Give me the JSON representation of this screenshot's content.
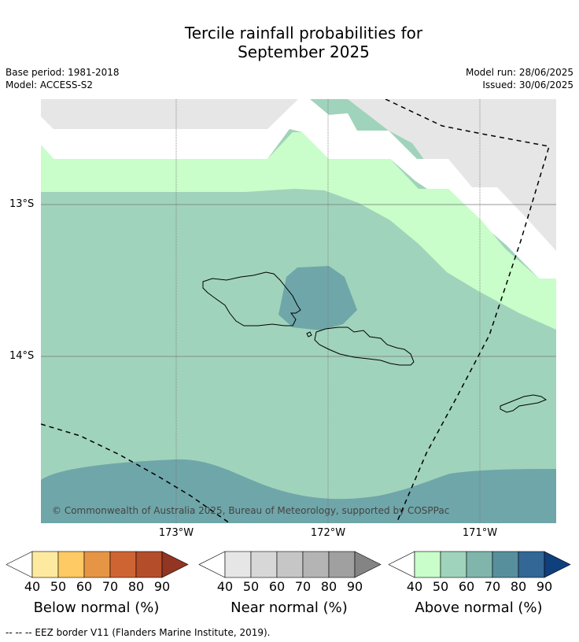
{
  "title_line1": "Tercile rainfall probabilities for",
  "title_line2": "September 2025",
  "meta": {
    "base_period": "Base period: 1981-2018",
    "model": "Model: ACCESS-S2",
    "model_run": "Model run: 28/06/2025",
    "issued": "Issued: 30/06/2025"
  },
  "map": {
    "lat_labels": [
      "13°S",
      "14°S"
    ],
    "lon_labels": [
      "173°W",
      "172°W",
      "171°W"
    ],
    "copyright": "© Commonwealth of Australia 2025, Bureau of Meteorology, supported by COSPPac"
  },
  "colorbars": [
    {
      "title": "Below normal (%)",
      "ticks": [
        "40",
        "50",
        "60",
        "70",
        "80",
        "90"
      ],
      "colors": [
        "#ffffff",
        "#fdeaa0",
        "#fdca63",
        "#e69545",
        "#cf6433",
        "#b44e2a",
        "#923523"
      ]
    },
    {
      "title": "Near normal (%)",
      "ticks": [
        "40",
        "50",
        "60",
        "70",
        "80",
        "90"
      ],
      "colors": [
        "#ffffff",
        "#e6e6e6",
        "#d7d7d7",
        "#c6c6c6",
        "#b4b4b4",
        "#a0a0a0",
        "#848484"
      ]
    },
    {
      "title": "Above normal (%)",
      "ticks": [
        "40",
        "50",
        "60",
        "70",
        "80",
        "90"
      ],
      "colors": [
        "#ffffff",
        "#c9fdc9",
        "#a0d3bb",
        "#80b5ab",
        "#578f9d",
        "#336796",
        "#0f3f7d"
      ]
    }
  ],
  "footnote": "--  --  -- EEZ border V11 (Flanders Marine Institute, 2019).",
  "legend_colors": {
    "near_normal_40_50": "#e6e6e6",
    "above_normal_40_50": "#c9fdc9",
    "above_normal_50_60": "#a0d3bb",
    "above_normal_60_70": "#80b5ab",
    "above_normal_70_80": "#578f9d"
  }
}
